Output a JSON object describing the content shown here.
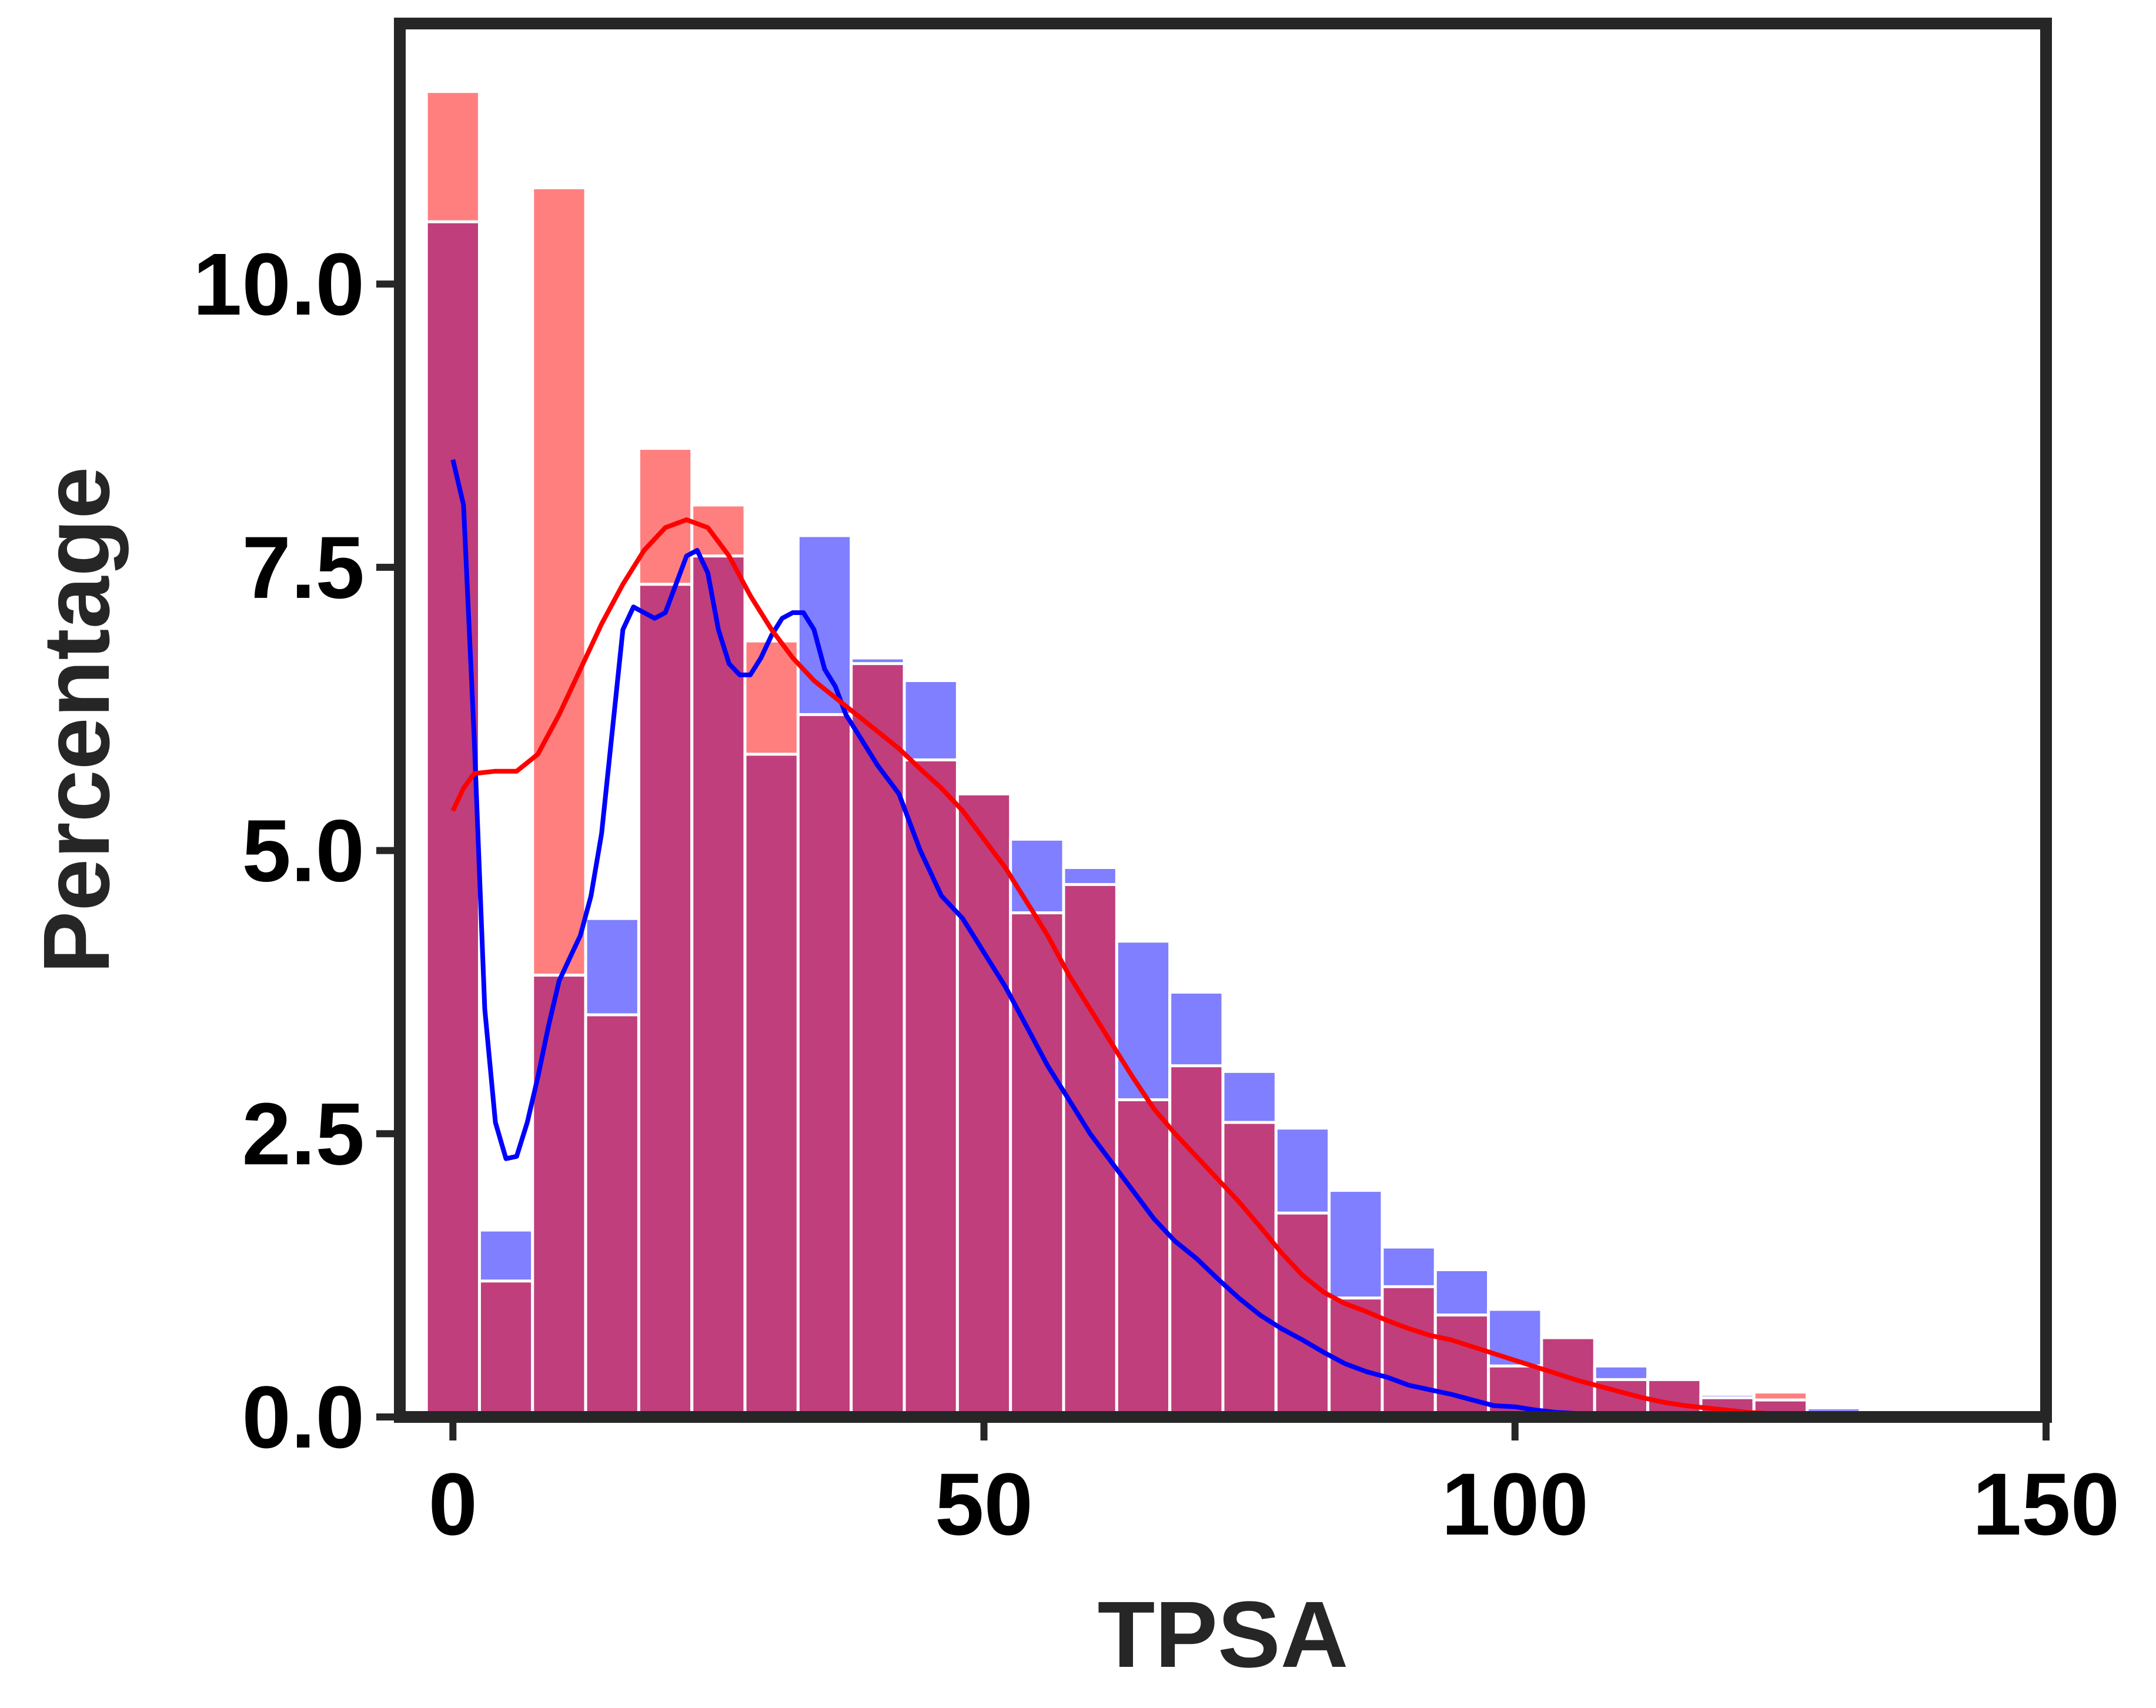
{
  "chart_data": {
    "type": "bar",
    "xlabel": "TPSA",
    "ylabel": "Percentage",
    "xlim": [
      -5,
      150
    ],
    "ylim": [
      0,
      12.3
    ],
    "xticks": [
      0,
      50,
      100,
      150
    ],
    "xtick_labels": [
      "0",
      "50",
      "100",
      "150"
    ],
    "yticks": [
      0,
      2.5,
      5,
      7.5,
      10
    ],
    "ytick_labels": [
      "0.0",
      "2.5",
      "5.0",
      "7.5",
      "10.0"
    ],
    "grid": false,
    "legend": "none",
    "bin_width": 5,
    "bin_left_edges": [
      -2.5,
      2.5,
      7.5,
      12.5,
      17.5,
      22.5,
      27.5,
      32.5,
      37.5,
      42.5,
      47.5,
      52.5,
      57.5,
      62.5,
      67.5,
      72.5,
      77.5,
      82.5,
      87.5,
      92.5,
      97.5,
      102.5,
      107.5,
      112.5,
      117.5,
      122.5,
      127.5,
      132.5,
      137.5,
      142.5
    ],
    "colors": {
      "series_a_bar": "#ff0000",
      "series_b_bar": "#0000ff",
      "overlap_bar": "#c03e7b",
      "series_a_line": "#ff0000",
      "series_b_line": "#0000ff",
      "bar_edge": "#ffffff",
      "frame": "#262626"
    },
    "series": [
      {
        "color": "#ff0000",
        "values": [
          11.7,
          1.2,
          10.85,
          3.55,
          8.55,
          8.05,
          6.85,
          6.2,
          6.65,
          5.8,
          5.5,
          4.45,
          4.7,
          2.8,
          3.1,
          2.6,
          1.8,
          1.05,
          1.15,
          0.9,
          0.45,
          0.72,
          0.33,
          0.33,
          0.17,
          0.22,
          0.04,
          0.02,
          0.01,
          0.01
        ],
        "kde_x": [
          0,
          1,
          2,
          4,
          6,
          8,
          10,
          12,
          14,
          16,
          18,
          20,
          22,
          24,
          26,
          28,
          30,
          32,
          34,
          36,
          38,
          40,
          42,
          44,
          46,
          48,
          50,
          52,
          54,
          56,
          58,
          60,
          62,
          64,
          66,
          68,
          70,
          72,
          74,
          76,
          78,
          80,
          82,
          84,
          86,
          88,
          90,
          92,
          94,
          96,
          98,
          100,
          102,
          104,
          106,
          108,
          110,
          112,
          114,
          116,
          118,
          120,
          122,
          124,
          126,
          128,
          130,
          132,
          134,
          136
        ],
        "kde_y": [
          5.35,
          5.55,
          5.68,
          5.7,
          5.7,
          5.85,
          6.2,
          6.6,
          7.0,
          7.35,
          7.65,
          7.85,
          7.92,
          7.85,
          7.6,
          7.25,
          6.95,
          6.7,
          6.5,
          6.35,
          6.2,
          6.05,
          5.9,
          5.72,
          5.55,
          5.35,
          5.1,
          4.85,
          4.55,
          4.25,
          3.9,
          3.6,
          3.3,
          3.0,
          2.72,
          2.5,
          2.3,
          2.1,
          1.9,
          1.68,
          1.45,
          1.25,
          1.1,
          1.0,
          0.93,
          0.85,
          0.78,
          0.72,
          0.68,
          0.62,
          0.56,
          0.5,
          0.44,
          0.38,
          0.32,
          0.27,
          0.22,
          0.17,
          0.13,
          0.1,
          0.08,
          0.06,
          0.04,
          0.03,
          0.02,
          0.01,
          0.01,
          0.0,
          0.0,
          0.0
        ]
      },
      {
        "color": "#0000ff",
        "values": [
          10.55,
          1.65,
          3.9,
          4.4,
          7.35,
          7.6,
          5.85,
          7.78,
          6.7,
          6.5,
          5.5,
          5.1,
          4.85,
          4.2,
          3.75,
          3.05,
          2.55,
          2.0,
          1.5,
          1.3,
          0.95,
          0.7,
          0.45,
          0.35,
          0.2,
          0.15,
          0.08,
          0.05,
          0.03,
          0.02
        ],
        "kde_x": [
          0,
          1,
          2,
          3,
          4,
          5,
          6,
          7,
          8,
          9,
          10,
          11,
          12,
          13,
          14,
          15,
          16,
          17,
          18,
          19,
          20,
          21,
          22,
          23,
          24,
          25,
          26,
          27,
          28,
          29,
          30,
          31,
          32,
          33,
          34,
          35,
          36,
          37,
          38,
          39,
          40,
          42,
          44,
          46,
          48,
          50,
          52,
          54,
          56,
          58,
          60,
          62,
          64,
          66,
          68,
          70,
          72,
          74,
          76,
          78,
          80,
          82,
          84,
          86,
          88,
          90,
          92,
          94,
          96,
          98,
          100,
          102,
          104,
          106,
          108,
          110,
          112,
          114,
          116,
          118,
          120,
          124,
          128,
          132,
          136,
          140,
          145
        ],
        "kde_y": [
          8.45,
          8.05,
          6.0,
          3.6,
          2.6,
          2.28,
          2.3,
          2.6,
          3.0,
          3.45,
          3.85,
          4.05,
          4.25,
          4.6,
          5.15,
          6.05,
          6.95,
          7.15,
          7.1,
          7.05,
          7.1,
          7.35,
          7.6,
          7.65,
          7.45,
          6.95,
          6.65,
          6.55,
          6.55,
          6.7,
          6.9,
          7.05,
          7.1,
          7.1,
          6.95,
          6.6,
          6.45,
          6.2,
          6.05,
          5.9,
          5.75,
          5.5,
          5.0,
          4.6,
          4.4,
          4.1,
          3.8,
          3.45,
          3.1,
          2.8,
          2.5,
          2.25,
          2.0,
          1.75,
          1.55,
          1.4,
          1.22,
          1.05,
          0.9,
          0.78,
          0.68,
          0.57,
          0.47,
          0.4,
          0.35,
          0.28,
          0.24,
          0.2,
          0.15,
          0.1,
          0.09,
          0.06,
          0.04,
          0.03,
          0.02,
          0.01,
          0.0,
          0.0,
          0.0,
          0.0,
          0.0,
          0.0,
          0.0,
          0.0,
          0.0,
          0.0,
          0.0
        ]
      }
    ]
  }
}
